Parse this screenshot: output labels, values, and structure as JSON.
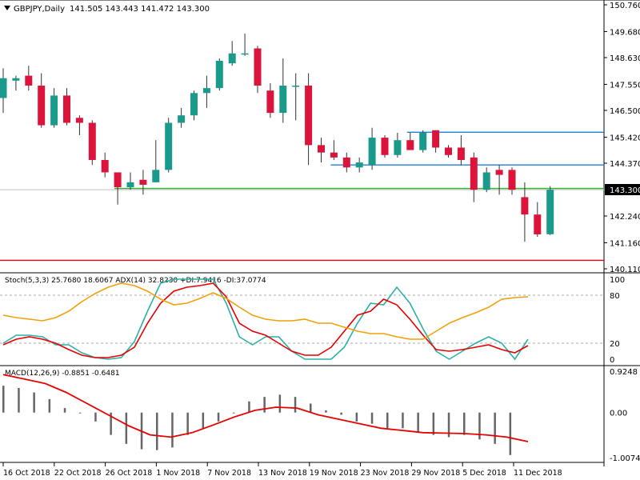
{
  "chart_data": [
    {
      "type": "candlestick",
      "title": "GBPJPY,Daily",
      "ohlc_header": "141.505 143.443 141.472 143.300",
      "price_ticks": [
        "150.760",
        "149.680",
        "148.630",
        "147.550",
        "146.500",
        "145.420",
        "144.370",
        "143.300",
        "142.240",
        "141.160",
        "140.110"
      ],
      "current_price": "143.300",
      "ylim": [
        140.11,
        150.76
      ],
      "candles": [
        {
          "o": 147.0,
          "h": 148.2,
          "l": 146.4,
          "c": 147.8
        },
        {
          "o": 147.7,
          "h": 147.9,
          "l": 147.3,
          "c": 147.8
        },
        {
          "o": 147.9,
          "h": 148.3,
          "l": 147.3,
          "c": 147.5
        },
        {
          "o": 147.5,
          "h": 148.0,
          "l": 145.8,
          "c": 145.9
        },
        {
          "o": 145.9,
          "h": 147.4,
          "l": 145.8,
          "c": 147.1
        },
        {
          "o": 147.1,
          "h": 147.4,
          "l": 145.9,
          "c": 146.0
        },
        {
          "o": 146.2,
          "h": 146.3,
          "l": 145.5,
          "c": 146.0
        },
        {
          "o": 146.0,
          "h": 146.1,
          "l": 144.3,
          "c": 144.5
        },
        {
          "o": 144.5,
          "h": 144.8,
          "l": 143.8,
          "c": 144.0
        },
        {
          "o": 144.0,
          "h": 144.0,
          "l": 142.7,
          "c": 143.4
        },
        {
          "o": 143.4,
          "h": 144.0,
          "l": 143.3,
          "c": 143.6
        },
        {
          "o": 143.7,
          "h": 144.1,
          "l": 143.1,
          "c": 143.5
        },
        {
          "o": 143.6,
          "h": 145.3,
          "l": 143.6,
          "c": 144.1
        },
        {
          "o": 144.1,
          "h": 146.2,
          "l": 144.0,
          "c": 146.0
        },
        {
          "o": 146.0,
          "h": 146.6,
          "l": 145.8,
          "c": 146.3
        },
        {
          "o": 146.3,
          "h": 147.3,
          "l": 146.1,
          "c": 147.2
        },
        {
          "o": 147.2,
          "h": 147.9,
          "l": 146.6,
          "c": 147.4
        },
        {
          "o": 147.4,
          "h": 148.6,
          "l": 147.3,
          "c": 148.5
        },
        {
          "o": 148.4,
          "h": 149.3,
          "l": 148.3,
          "c": 148.8
        },
        {
          "o": 148.8,
          "h": 149.6,
          "l": 148.7,
          "c": 148.8
        },
        {
          "o": 149.0,
          "h": 149.1,
          "l": 147.2,
          "c": 147.5
        },
        {
          "o": 147.3,
          "h": 147.6,
          "l": 146.2,
          "c": 146.4
        },
        {
          "o": 146.4,
          "h": 148.6,
          "l": 146.0,
          "c": 147.5
        },
        {
          "o": 147.5,
          "h": 148.0,
          "l": 146.1,
          "c": 147.5
        },
        {
          "o": 147.5,
          "h": 148.0,
          "l": 144.3,
          "c": 145.1
        },
        {
          "o": 145.1,
          "h": 145.4,
          "l": 144.4,
          "c": 144.8
        },
        {
          "o": 144.8,
          "h": 145.3,
          "l": 144.5,
          "c": 144.6
        },
        {
          "o": 144.6,
          "h": 144.8,
          "l": 144.0,
          "c": 144.2
        },
        {
          "o": 144.2,
          "h": 144.6,
          "l": 144.0,
          "c": 144.4
        },
        {
          "o": 144.3,
          "h": 145.8,
          "l": 144.1,
          "c": 145.4
        },
        {
          "o": 145.4,
          "h": 145.5,
          "l": 144.6,
          "c": 144.7
        },
        {
          "o": 144.7,
          "h": 145.6,
          "l": 144.6,
          "c": 145.3
        },
        {
          "o": 145.3,
          "h": 145.6,
          "l": 144.9,
          "c": 144.9
        },
        {
          "o": 144.9,
          "h": 145.7,
          "l": 144.8,
          "c": 145.6
        },
        {
          "o": 145.7,
          "h": 145.7,
          "l": 144.8,
          "c": 145.0
        },
        {
          "o": 145.0,
          "h": 145.1,
          "l": 144.6,
          "c": 144.7
        },
        {
          "o": 145.0,
          "h": 145.5,
          "l": 144.3,
          "c": 144.5
        },
        {
          "o": 144.6,
          "h": 144.8,
          "l": 142.8,
          "c": 143.3
        },
        {
          "o": 143.3,
          "h": 144.2,
          "l": 143.2,
          "c": 144.0
        },
        {
          "o": 144.1,
          "h": 144.3,
          "l": 143.1,
          "c": 143.9
        },
        {
          "o": 144.1,
          "h": 144.2,
          "l": 143.1,
          "c": 143.3
        },
        {
          "o": 143.0,
          "h": 143.6,
          "l": 141.2,
          "c": 142.3
        },
        {
          "o": 142.3,
          "h": 142.8,
          "l": 141.4,
          "c": 141.5
        },
        {
          "o": 141.505,
          "h": 143.443,
          "l": 141.472,
          "c": 143.3
        }
      ],
      "horizontal_lines": [
        {
          "value": 145.62,
          "color": "#1e7fd6",
          "from_candle": 32
        },
        {
          "value": 144.3,
          "color": "#1e7fd6",
          "from_candle": 26
        },
        {
          "value": 143.35,
          "color": "#29b829",
          "from_candle": 9
        },
        {
          "value": 140.45,
          "color": "#e60000",
          "from_candle": 0
        }
      ]
    },
    {
      "type": "line",
      "header": "Stoch(5,3,3) 25.7680 18.6067   ADX(14) 32.8230 +DI:7.9416 -DI:37.0774",
      "ticks": [
        "100",
        "80",
        "20",
        "0"
      ],
      "ylim": [
        0,
        100
      ],
      "levels": [
        80,
        20
      ],
      "series": [
        {
          "color": "#2ab0a6",
          "values": [
            20,
            30,
            30,
            28,
            18,
            18,
            8,
            2,
            0,
            2,
            22,
            60,
            95,
            100,
            100,
            100,
            100,
            70,
            28,
            18,
            28,
            28,
            10,
            0,
            0,
            0,
            15,
            45,
            70,
            68,
            90,
            70,
            38,
            10,
            0,
            10,
            20,
            28,
            20,
            0,
            25
          ]
        },
        {
          "color": "#e60000",
          "values": [
            18,
            25,
            28,
            25,
            20,
            12,
            5,
            2,
            2,
            5,
            15,
            45,
            70,
            85,
            90,
            92,
            95,
            78,
            45,
            35,
            30,
            20,
            10,
            5,
            5,
            15,
            35,
            55,
            60,
            75,
            68,
            50,
            30,
            12,
            10,
            12,
            15,
            18,
            12,
            8,
            17
          ]
        },
        {
          "color": "#f0a10a",
          "values": [
            55,
            52,
            50,
            48,
            52,
            60,
            72,
            82,
            90,
            95,
            92,
            85,
            75,
            68,
            70,
            76,
            83,
            76,
            65,
            55,
            50,
            48,
            48,
            50,
            45,
            45,
            40,
            35,
            32,
            32,
            28,
            25,
            25,
            35,
            45,
            52,
            58,
            65,
            75,
            77,
            78
          ]
        }
      ]
    },
    {
      "type": "histogram",
      "header": "MACD(12,26,9) -0.8851 -0.6481",
      "ticks": [
        "0.9248",
        "0.00",
        "-1.0074"
      ],
      "ylim": [
        -1.0074,
        0.9248
      ],
      "histogram": [
        0.6,
        0.55,
        0.45,
        0.3,
        0.1,
        0.0,
        -0.2,
        -0.5,
        -0.7,
        -0.82,
        -0.84,
        -0.78,
        -0.5,
        -0.35,
        -0.2,
        0.0,
        0.25,
        0.35,
        0.4,
        0.35,
        0.2,
        0.05,
        -0.05,
        -0.2,
        -0.25,
        -0.35,
        -0.35,
        -0.45,
        -0.5,
        -0.55,
        -0.5,
        -0.6,
        -0.7,
        -0.95
      ],
      "signal": [
        0.85,
        0.75,
        0.65,
        0.45,
        0.2,
        -0.05,
        -0.3,
        -0.5,
        -0.55,
        -0.45,
        -0.28,
        -0.1,
        0.05,
        0.12,
        0.1,
        -0.05,
        -0.15,
        -0.25,
        -0.35,
        -0.4,
        -0.45,
        -0.46,
        -0.47,
        -0.5,
        -0.55,
        -0.65
      ],
      "signal_color": "#e60000",
      "histogram_color": "#666666"
    }
  ],
  "date_ticks": [
    "16 Oct 2018",
    "22 Oct 2018",
    "26 Oct 2018",
    "1 Nov 2018",
    "7 Nov 2018",
    "13 Nov 2018",
    "19 Nov 2018",
    "23 Nov 2018",
    "29 Nov 2018",
    "5 Dec 2018",
    "11 Dec 2018"
  ],
  "colors": {
    "bull": "#1a9a8a",
    "bear": "#dc143c",
    "axis": "#000000"
  }
}
